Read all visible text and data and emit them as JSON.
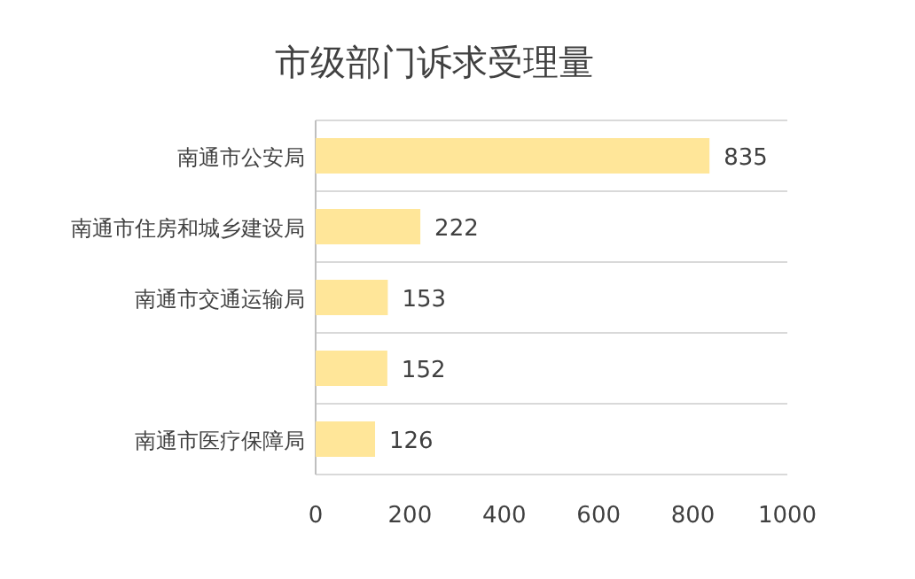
{
  "chart_data": {
    "type": "bar",
    "orientation": "horizontal",
    "title": "市级部门诉求受理量",
    "categories": [
      "南通市公安局",
      "南通市住房和城乡建设局",
      "南通市交通运输局",
      null,
      "南通市医疗保障局"
    ],
    "values": [
      835,
      222,
      153,
      152,
      126
    ],
    "color": "#ffe699",
    "xlim": [
      0,
      1000
    ],
    "xticks": [
      0,
      200,
      400,
      600,
      800,
      1000
    ],
    "grid": "y",
    "data_labels": true
  }
}
